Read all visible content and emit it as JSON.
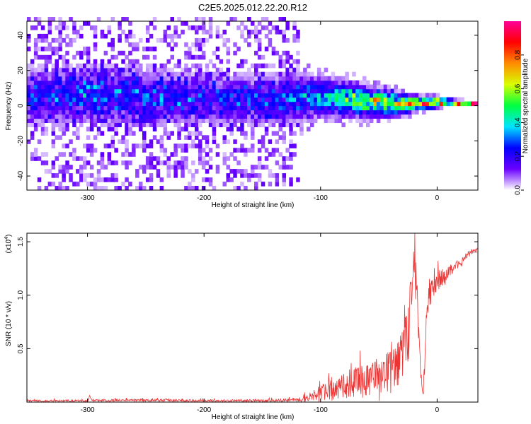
{
  "chart_data": [
    {
      "type": "heatmap",
      "title": "C2E5.2025.012.22.20.R12",
      "xlabel": "Height of straight line (km)",
      "ylabel": "Frequency (Hz)",
      "xlim": [
        -352,
        35
      ],
      "ylim": [
        -48,
        48
      ],
      "x_ticks": [
        -300,
        -200,
        -100,
        0
      ],
      "x_tick_labels": [
        "-300",
        "-200",
        "-100",
        "0"
      ],
      "y_ticks": [
        -40,
        -20,
        0,
        20,
        40
      ],
      "y_tick_labels": [
        "-40",
        "-20",
        "0",
        "20",
        "40"
      ],
      "colorbar": {
        "label": "Normalized spectral amplitude",
        "range": [
          0,
          1
        ],
        "ticks": [
          0.0,
          0.2,
          0.4,
          0.6,
          0.8
        ],
        "tick_labels": [
          "0.0",
          "0.2",
          "0.4",
          "0.6",
          "0.8"
        ],
        "colors": [
          "#ffffff",
          "#6a00ff",
          "#0000ff",
          "#00e5ff",
          "#00ff40",
          "#d8ff00",
          "#ff8c00",
          "#ff0000",
          "#ff0099"
        ]
      },
      "ridge": {
        "x": [
          -350,
          -300,
          -250,
          -200,
          -150,
          -120,
          -100,
          -80,
          -60,
          -40,
          -20,
          0,
          10,
          30
        ],
        "center_hz": [
          4,
          5,
          4,
          3,
          2,
          3,
          4,
          3,
          1,
          0,
          0,
          1,
          1,
          0
        ],
        "amplitude": [
          0.18,
          0.22,
          0.2,
          0.18,
          0.2,
          0.25,
          0.35,
          0.45,
          0.55,
          0.6,
          0.65,
          0.8,
          0.9,
          0.95
        ],
        "halfwidth_hz": [
          12,
          12,
          12,
          11,
          10,
          10,
          8,
          7,
          6,
          5,
          3,
          2,
          1,
          1
        ]
      },
      "background_noise_until_km": -120
    },
    {
      "type": "line",
      "xlabel": "Height of straight line (km)",
      "ylabel": "SNR (10 * v/v)",
      "y_multiplier_label": "(x10",
      "y_multiplier_exp": "4",
      "xlim": [
        -352,
        35
      ],
      "ylim": [
        0,
        1.58
      ],
      "x_ticks": [
        -300,
        -200,
        -100,
        0
      ],
      "x_tick_labels": [
        "-300",
        "-200",
        "-100",
        "0"
      ],
      "y_ticks": [
        0.5,
        1.0,
        1.5
      ],
      "y_tick_labels": [
        "0.5",
        "1.0",
        "1.5"
      ],
      "color": "#ee3333",
      "envelope": {
        "x": [
          -352,
          -300,
          -298,
          -296,
          -250,
          -200,
          -150,
          -120,
          -110,
          -100,
          -90,
          -80,
          -70,
          -60,
          -50,
          -40,
          -35,
          -30,
          -25,
          -22,
          -20,
          -18,
          -15,
          -12,
          -10,
          -8,
          -5,
          0,
          5,
          10,
          20,
          30,
          35
        ],
        "base": [
          0.01,
          0.01,
          0.04,
          0.01,
          0.015,
          0.01,
          0.01,
          0.015,
          0.03,
          0.06,
          0.08,
          0.12,
          0.14,
          0.15,
          0.2,
          0.22,
          0.3,
          0.35,
          0.55,
          0.9,
          1.15,
          1.05,
          0.45,
          0.02,
          0.6,
          0.9,
          1.0,
          1.1,
          1.15,
          1.2,
          1.3,
          1.4,
          1.42
        ],
        "spread": [
          0.015,
          0.02,
          0.04,
          0.02,
          0.025,
          0.02,
          0.025,
          0.03,
          0.08,
          0.15,
          0.2,
          0.25,
          0.3,
          0.3,
          0.35,
          0.4,
          0.45,
          0.5,
          0.6,
          0.7,
          0.45,
          0.4,
          0.35,
          0.05,
          0.3,
          0.25,
          0.25,
          0.2,
          0.15,
          0.1,
          0.08,
          0.05,
          0.04
        ]
      }
    }
  ]
}
